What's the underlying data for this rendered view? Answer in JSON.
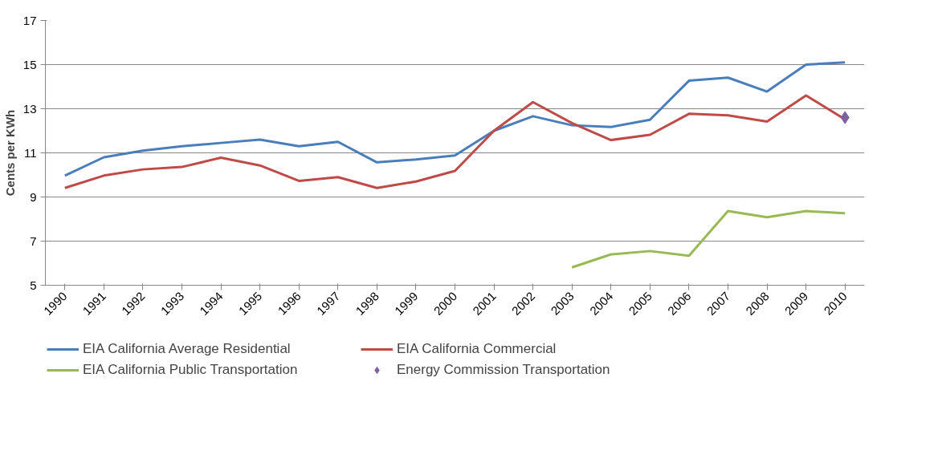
{
  "chart_data": {
    "type": "line",
    "ylabel": "Cents per KWh",
    "categories": [
      "1990",
      "1991",
      "1992",
      "1993",
      "1994",
      "1995",
      "1996",
      "1997",
      "1998",
      "1999",
      "2000",
      "2001",
      "2002",
      "2003",
      "2004",
      "2005",
      "2006",
      "2007",
      "2008",
      "2009",
      "2010"
    ],
    "ylim": [
      5,
      17
    ],
    "yticks": [
      5,
      7,
      9,
      11,
      13,
      15,
      17
    ],
    "grid": "y",
    "legend": "bottom",
    "series": [
      {
        "name": "EIA California Average Residential",
        "color": "#4a7ebb",
        "values": [
          9.97,
          10.8,
          11.1,
          11.3,
          11.45,
          11.6,
          11.3,
          11.5,
          10.57,
          10.7,
          10.88,
          12.0,
          12.66,
          12.25,
          12.17,
          12.5,
          14.27,
          14.41,
          13.78,
          15.0,
          15.1
        ]
      },
      {
        "name": "EIA California Commercial",
        "color": "#be4b48",
        "values": [
          9.41,
          9.97,
          10.25,
          10.36,
          10.78,
          10.43,
          9.73,
          9.9,
          9.41,
          9.7,
          10.18,
          12.0,
          13.3,
          12.35,
          11.58,
          11.82,
          12.77,
          12.7,
          12.42,
          13.6,
          12.52
        ]
      },
      {
        "name": "EIA California Public Transportation",
        "color": "#98b954",
        "values": [
          null,
          null,
          null,
          null,
          null,
          null,
          null,
          null,
          null,
          null,
          null,
          null,
          null,
          5.81,
          6.4,
          6.55,
          6.34,
          8.36,
          8.08,
          8.36,
          8.26
        ]
      },
      {
        "name": "Energy Commission Transportation",
        "color": "#7d60a0",
        "type": "scatter",
        "marker": "diamond",
        "values": [
          null,
          null,
          null,
          null,
          null,
          null,
          null,
          null,
          null,
          null,
          null,
          null,
          null,
          null,
          null,
          null,
          null,
          null,
          null,
          null,
          12.6
        ]
      }
    ]
  }
}
